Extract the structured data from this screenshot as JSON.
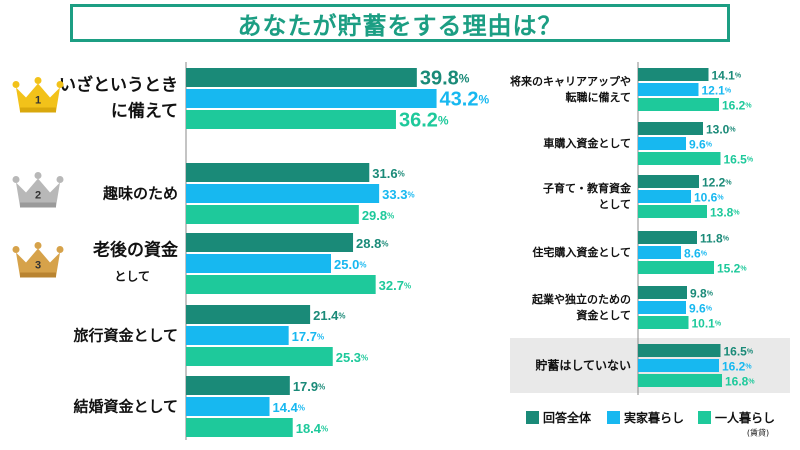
{
  "title": "あなたが貯蓄をする理由は？",
  "colors": {
    "total": "#1a8a78",
    "family": "#17b8f0",
    "alone": "#1ec99b",
    "highlight": "#e9e9e9",
    "axis": "#888888"
  },
  "legend": {
    "total": "回答全体",
    "family": "実家暮らし",
    "alone": "一人暮らし",
    "alone_note": "(賃貸)"
  },
  "chart_data": [
    {
      "type": "bar",
      "orientation": "horizontal",
      "title": "あなたが貯蓄をする理由は？",
      "series": [
        {
          "key": "total",
          "name": "回答全体"
        },
        {
          "key": "family",
          "name": "実家暮らし"
        },
        {
          "key": "alone",
          "name": "一人暮らし(賃貸)"
        }
      ],
      "categories": [
        {
          "label": [
            "いざというとき",
            "に備えて"
          ],
          "rank": "1",
          "crown": "gold",
          "values": [
            39.8,
            43.2,
            36.2
          ]
        },
        {
          "label": [
            "趣味のため"
          ],
          "rank": "2",
          "crown": "silver",
          "values": [
            31.6,
            33.3,
            29.8
          ]
        },
        {
          "label": [
            "老後の資金",
            "として"
          ],
          "rank": "3",
          "crown": "bronze",
          "values": [
            28.8,
            25.0,
            32.7
          ]
        },
        {
          "label": [
            "旅行資金として"
          ],
          "values": [
            21.4,
            17.7,
            25.3
          ]
        },
        {
          "label": [
            "結婚資金として"
          ],
          "values": [
            17.9,
            14.4,
            18.4
          ]
        }
      ]
    },
    {
      "type": "bar",
      "orientation": "horizontal",
      "series": [
        {
          "key": "total",
          "name": "回答全体"
        },
        {
          "key": "family",
          "name": "実家暮らし"
        },
        {
          "key": "alone",
          "name": "一人暮らし(賃貸)"
        }
      ],
      "categories": [
        {
          "label": [
            "将来のキャリアアップや",
            "転職に備えて"
          ],
          "values": [
            14.1,
            12.1,
            16.2
          ]
        },
        {
          "label": [
            "車購入資金として"
          ],
          "values": [
            13.0,
            9.6,
            16.5
          ]
        },
        {
          "label": [
            "子育て・教育資金",
            "として"
          ],
          "values": [
            12.2,
            10.6,
            13.8
          ]
        },
        {
          "label": [
            "住宅購入資金として"
          ],
          "values": [
            11.8,
            8.6,
            15.2
          ]
        },
        {
          "label": [
            "起業や独立のための",
            "資金として"
          ],
          "values": [
            9.8,
            9.6,
            10.1
          ]
        },
        {
          "label": [
            "貯蓄はしていない"
          ],
          "values": [
            16.5,
            16.2,
            16.8
          ],
          "highlight": true
        }
      ]
    }
  ]
}
